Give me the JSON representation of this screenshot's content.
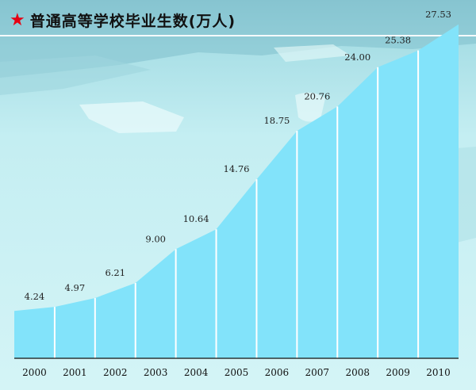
{
  "title": "普通高等学校毕业生数(万人)",
  "colors": {
    "area_fill": "#82e3fa",
    "background": "#c3eff3",
    "star": "#e60012",
    "divider": "#ffffff"
  },
  "chart_data": {
    "type": "area",
    "title": "普通高等学校毕业生数(万人)",
    "xlabel": "",
    "ylabel": "",
    "categories": [
      "2000",
      "2001",
      "2002",
      "2003",
      "2004",
      "2005",
      "2006",
      "2007",
      "2008",
      "2009",
      "2010"
    ],
    "series": [
      {
        "values": [
          4.24,
          4.97,
          6.21,
          9.0,
          10.64,
          14.76,
          18.75,
          20.76,
          24.0,
          25.38,
          27.53
        ]
      }
    ],
    "data_labels": [
      "4.24",
      "4.97",
      "6.21",
      "9.00",
      "10.64",
      "14.76",
      "18.75",
      "20.76",
      "24.00",
      "25.38",
      "27.53"
    ],
    "ylim": [
      0,
      28
    ],
    "grid": false,
    "legend": "none"
  }
}
